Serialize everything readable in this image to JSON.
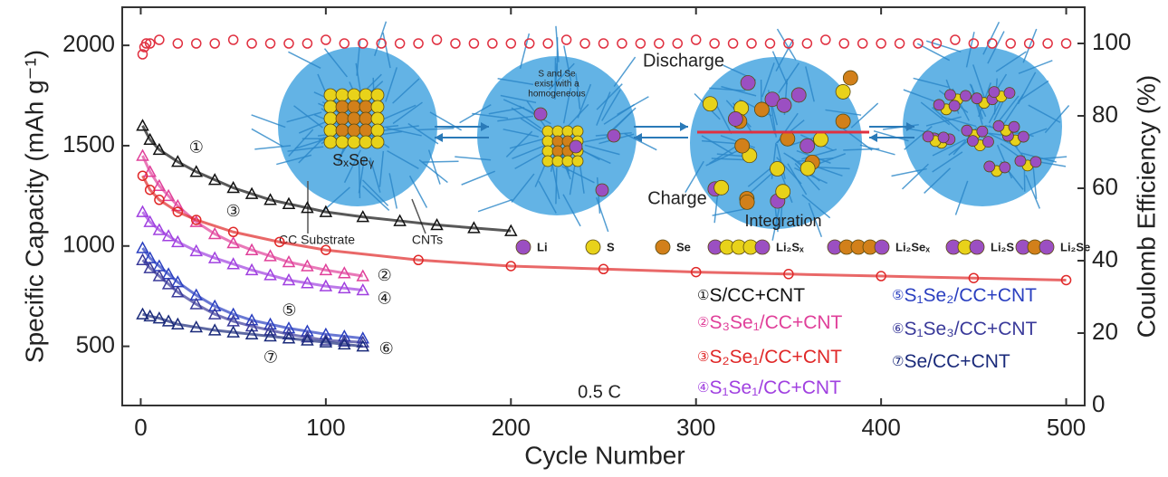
{
  "chart_data": {
    "type": "scatter",
    "x_label": "Cycle Number",
    "y_label": "Specific Capacity (mAh g⁻¹)",
    "y2_label": "Coulomb Efficiency (%)",
    "annotation": "0.5 C",
    "xlim": [
      -10,
      510
    ],
    "xticks": [
      0,
      100,
      200,
      300,
      400,
      500
    ],
    "ylim": [
      205,
      2190
    ],
    "yticks": [
      500,
      1000,
      1500,
      2000
    ],
    "y2lim": [
      0,
      110
    ],
    "y2ticks": [
      0,
      20,
      40,
      60,
      80,
      100
    ],
    "series": [
      {
        "name": "S/CC+CNT",
        "label": "①",
        "color": "#111111",
        "marker": "triangle",
        "x": [
          1,
          5,
          10,
          20,
          30,
          40,
          50,
          60,
          70,
          80,
          90,
          100,
          120,
          140,
          160,
          180,
          200
        ],
        "values": [
          1600,
          1530,
          1480,
          1420,
          1370,
          1330,
          1290,
          1260,
          1230,
          1210,
          1190,
          1170,
          1145,
          1125,
          1105,
          1090,
          1075
        ]
      },
      {
        "name": "S₃Se₁/CC+CNT",
        "label": "②",
        "color": "#e0409a",
        "marker": "triangle",
        "x": [
          1,
          5,
          10,
          15,
          20,
          30,
          40,
          50,
          60,
          70,
          80,
          90,
          100,
          110,
          120
        ],
        "values": [
          1450,
          1370,
          1300,
          1250,
          1200,
          1120,
          1060,
          1015,
          980,
          950,
          920,
          900,
          880,
          865,
          850
        ]
      },
      {
        "name": "S₂Se₁/CC+CNT",
        "label": "③",
        "color": "#e02828",
        "marker": "circle",
        "x": [
          1,
          5,
          10,
          20,
          30,
          50,
          75,
          100,
          150,
          200,
          250,
          300,
          350,
          400,
          450,
          500
        ],
        "values": [
          1350,
          1280,
          1230,
          1170,
          1130,
          1070,
          1020,
          980,
          930,
          900,
          885,
          870,
          860,
          850,
          840,
          830
        ]
      },
      {
        "name": "S₁Se₁/CC+CNT",
        "label": "④",
        "color": "#a040e0",
        "marker": "triangle",
        "x": [
          1,
          5,
          10,
          15,
          20,
          30,
          40,
          50,
          60,
          70,
          80,
          90,
          100,
          110,
          120
        ],
        "values": [
          1170,
          1120,
          1080,
          1050,
          1020,
          975,
          940,
          910,
          880,
          855,
          830,
          815,
          800,
          790,
          780
        ]
      },
      {
        "name": "S₁Se₂/CC+CNT",
        "label": "⑤",
        "color": "#2a3fc0",
        "marker": "triangle",
        "x": [
          1,
          5,
          10,
          15,
          20,
          30,
          40,
          50,
          60,
          70,
          80,
          90,
          100,
          110,
          120
        ],
        "values": [
          990,
          940,
          900,
          860,
          820,
          755,
          700,
          660,
          630,
          610,
          590,
          575,
          560,
          550,
          540
        ]
      },
      {
        "name": "S₁Se₃/CC+CNT",
        "label": "⑥",
        "color": "#3a3a9a",
        "marker": "triangle",
        "x": [
          1,
          5,
          10,
          15,
          20,
          30,
          40,
          50,
          60,
          70,
          80,
          90,
          100,
          110,
          120
        ],
        "values": [
          930,
          890,
          850,
          810,
          770,
          710,
          660,
          625,
          600,
          580,
          560,
          545,
          530,
          525,
          520
        ]
      },
      {
        "name": "Se/CC+CNT",
        "label": "⑦",
        "color": "#1a2a7a",
        "marker": "triangle",
        "x": [
          1,
          5,
          10,
          15,
          20,
          30,
          40,
          50,
          60,
          70,
          80,
          90,
          100,
          110,
          120
        ],
        "values": [
          660,
          650,
          640,
          625,
          610,
          595,
          580,
          570,
          560,
          550,
          540,
          530,
          520,
          510,
          500
        ]
      },
      {
        "color": "#e03040",
        "marker": "circle",
        "axis": "y2",
        "x": [
          1,
          2,
          3,
          5,
          10,
          20,
          30,
          40,
          50,
          60,
          70,
          80,
          90,
          100,
          110,
          120,
          130,
          140,
          150,
          160,
          170,
          180,
          190,
          200,
          210,
          220,
          230,
          240,
          250,
          260,
          270,
          280,
          290,
          300,
          310,
          320,
          330,
          340,
          350,
          360,
          370,
          380,
          390,
          400,
          410,
          420,
          430,
          440,
          450,
          460,
          470,
          480,
          490,
          500
        ],
        "values": [
          97,
          99,
          100,
          100,
          101,
          100,
          100,
          100,
          101,
          100,
          100,
          100,
          100,
          101,
          100,
          100,
          100,
          100,
          100,
          101,
          100,
          100,
          100,
          100,
          100,
          100,
          101,
          100,
          100,
          100,
          100,
          100,
          100,
          101,
          100,
          100,
          100,
          100,
          100,
          100,
          101,
          100,
          100,
          100,
          100,
          100,
          100,
          101,
          100,
          100,
          100,
          100,
          100,
          100
        ]
      }
    ]
  },
  "inset": {
    "discharge": "Discharge",
    "charge": "Charge",
    "integration": "Integration",
    "compound": "SₓSeᵧ",
    "note": [
      "S and Se",
      "exist with a",
      "homogeneous"
    ],
    "substrate": "CC Substrate",
    "cnts": "CNTs",
    "legend": [
      "Li",
      "S",
      "Se",
      "Li₂Sₓ",
      "Li₂Seₓ",
      "Li₂S",
      "Li₂Se"
    ]
  }
}
